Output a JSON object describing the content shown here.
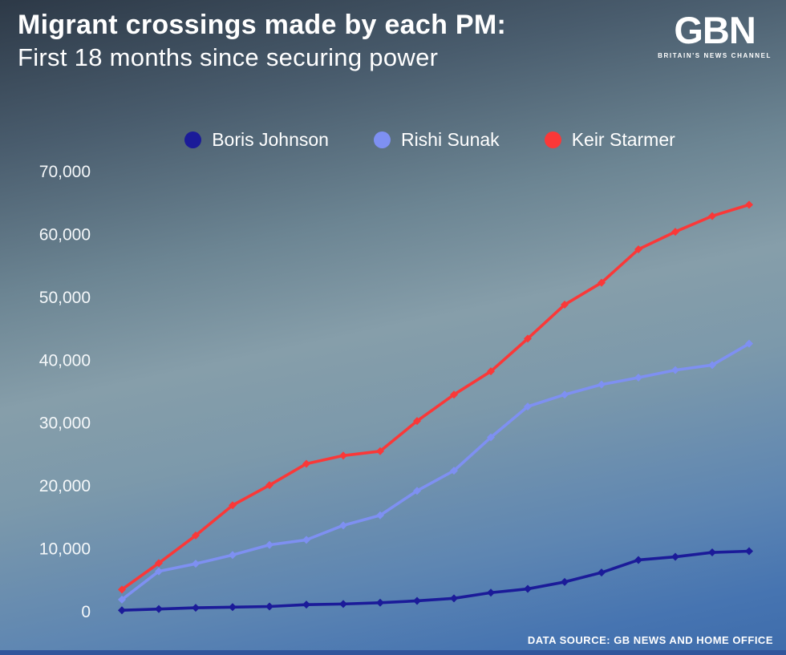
{
  "header": {
    "title_line1": "Migrant crossings made by each PM:",
    "title_line2": "First 18 months since securing power",
    "logo_text": "GBN",
    "logo_tagline": "BRITAIN'S NEWS CHANNEL"
  },
  "footer": {
    "source": "DATA SOURCE: GB NEWS AND HOME OFFICE"
  },
  "chart_data": {
    "type": "line",
    "title": "Migrant crossings made by each PM: First 18 months since securing power",
    "xlabel": "",
    "ylabel": "",
    "x": [
      1,
      2,
      3,
      4,
      5,
      6,
      7,
      8,
      9,
      10,
      11,
      12,
      13,
      14,
      15,
      16,
      17,
      18
    ],
    "ylim": [
      0,
      70000
    ],
    "yticks": [
      0,
      10000,
      20000,
      30000,
      40000,
      50000,
      60000,
      70000
    ],
    "grid": false,
    "legend_position": "top",
    "marker": "diamond",
    "series": [
      {
        "name": "Boris Johnson",
        "color": "#1b1b99",
        "values": [
          100,
          300,
          500,
          600,
          700,
          1000,
          1100,
          1300,
          1600,
          2000,
          2900,
          3500,
          4600,
          6100,
          8100,
          8600,
          9300,
          9500
        ]
      },
      {
        "name": "Rishi Sunak",
        "color": "#7e90f2",
        "values": [
          1800,
          6300,
          7500,
          8900,
          10500,
          11300,
          13600,
          15200,
          19100,
          22300,
          27600,
          32500,
          34400,
          36000,
          37100,
          38300,
          39100,
          42500
        ]
      },
      {
        "name": "Keir Starmer",
        "color": "#fa3838",
        "values": [
          3400,
          7600,
          12000,
          16800,
          20000,
          23400,
          24700,
          25400,
          30200,
          34400,
          38100,
          43300,
          48700,
          52200,
          57500,
          60300,
          62800,
          64600
        ]
      }
    ]
  }
}
